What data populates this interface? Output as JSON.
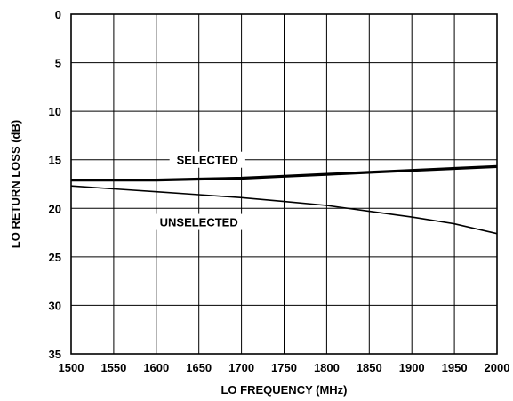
{
  "chart_data": {
    "type": "line",
    "xlabel": "LO FREQUENCY (MHz)",
    "ylabel": "LO RETURN LOSS (dB)",
    "xlim": [
      1500,
      2000
    ],
    "ylim": [
      0,
      35
    ],
    "y_inverted": true,
    "grid": true,
    "legend": "none",
    "x_ticks": [
      "1500",
      "1550",
      "1600",
      "1650",
      "1700",
      "1750",
      "1800",
      "1850",
      "1900",
      "1950",
      "2000"
    ],
    "y_ticks": [
      "0",
      "5",
      "10",
      "15",
      "20",
      "25",
      "30",
      "35"
    ],
    "series": [
      {
        "name": "SELECTED",
        "stroke": "#000000",
        "x": [
          1500,
          1550,
          1600,
          1650,
          1700,
          1750,
          1800,
          1850,
          1900,
          1950,
          2000
        ],
        "y": [
          17.1,
          17.1,
          17.1,
          17.0,
          16.9,
          16.7,
          16.5,
          16.3,
          16.1,
          15.9,
          15.7
        ]
      },
      {
        "name": "UNSELECTED",
        "stroke": "#000000",
        "x": [
          1500,
          1550,
          1600,
          1650,
          1700,
          1750,
          1800,
          1850,
          1900,
          1950,
          2000
        ],
        "y": [
          17.7,
          18.0,
          18.3,
          18.6,
          18.9,
          19.3,
          19.7,
          20.3,
          20.9,
          21.6,
          22.6
        ]
      }
    ]
  }
}
